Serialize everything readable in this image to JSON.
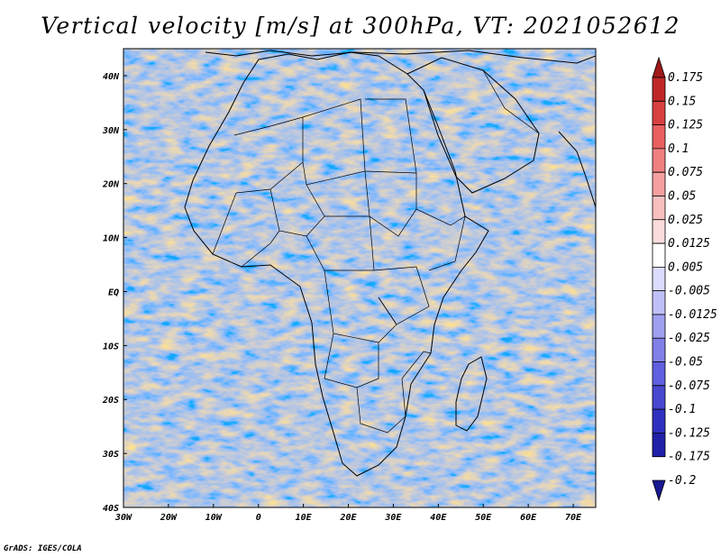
{
  "title": "Vertical velocity [m/s] at 300hPa, VT: 2021052612",
  "credit": "GrADS: IGES/COLA",
  "map": {
    "lon_range": [
      -30,
      75
    ],
    "lat_range": [
      -40,
      45
    ],
    "lon_ticks": [
      {
        "value": -30,
        "label": "30W"
      },
      {
        "value": -20,
        "label": "20W"
      },
      {
        "value": -10,
        "label": "10W"
      },
      {
        "value": 0,
        "label": "0"
      },
      {
        "value": 10,
        "label": "10E"
      },
      {
        "value": 20,
        "label": "20E"
      },
      {
        "value": 30,
        "label": "30E"
      },
      {
        "value": 40,
        "label": "40E"
      },
      {
        "value": 50,
        "label": "50E"
      },
      {
        "value": 60,
        "label": "60E"
      },
      {
        "value": 70,
        "label": "70E"
      }
    ],
    "lat_ticks": [
      {
        "value": 40,
        "label": "40N"
      },
      {
        "value": 30,
        "label": "30N"
      },
      {
        "value": 20,
        "label": "20N"
      },
      {
        "value": 10,
        "label": "10N"
      },
      {
        "value": 0,
        "label": "EQ"
      },
      {
        "value": -10,
        "label": "10S"
      },
      {
        "value": -20,
        "label": "20S"
      },
      {
        "value": -30,
        "label": "30S"
      },
      {
        "value": -40,
        "label": "40S"
      }
    ]
  },
  "colorbar": {
    "levels": [
      "0.175",
      "0.15",
      "0.125",
      "0.1",
      "0.075",
      "0.05",
      "0.025",
      "0.0125",
      "0.005",
      "-0.005",
      "-0.0125",
      "-0.025",
      "-0.05",
      "-0.075",
      "-0.1",
      "-0.125",
      "-0.175",
      "-0.2"
    ],
    "colors": [
      "#a01818",
      "#c02828",
      "#d84040",
      "#e86060",
      "#f08080",
      "#f5a0a0",
      "#f8c0c0",
      "#fcdcdc",
      "#ffffff",
      "#dcdcff",
      "#c0c0f8",
      "#a0a0f0",
      "#8080e8",
      "#6060e0",
      "#4848d0",
      "#3030c0",
      "#2020a8",
      "#181890"
    ]
  }
}
